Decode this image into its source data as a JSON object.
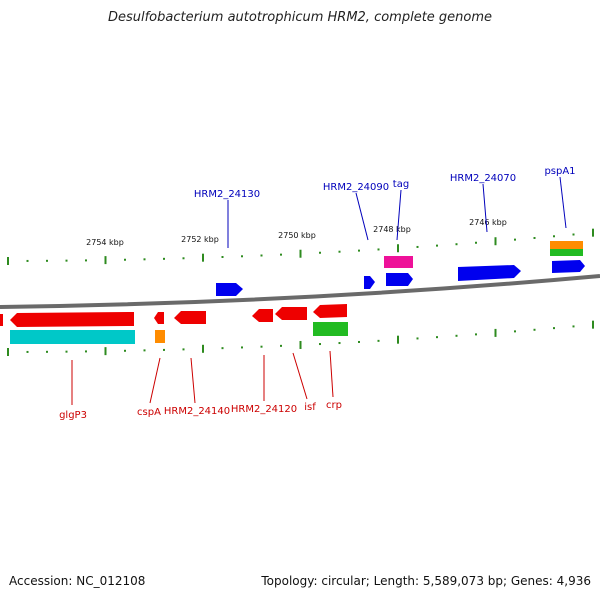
{
  "title": "Desulfobacterium autotrophicum HRM2, complete genome",
  "footer": {
    "accession": "Accession: NC_012108",
    "summary": "Topology: circular; Length: 5,589,073 bp; Genes: 4,936"
  },
  "colors": {
    "backbone": "#808080",
    "forward_label": "#0000bb",
    "reverse_label": "#cc0000",
    "tick": "#2e8b1f",
    "blue_gene": "#0000ee",
    "red_gene": "#ee0000",
    "cyan_gene": "#00c8c8",
    "orange_gene": "#ff8c00",
    "green_gene": "#22bb22",
    "magenta_gene": "#ee1199"
  },
  "scale_labels": [
    "2754 kbp",
    "2752 kbp",
    "2750 kbp",
    "2748 kbp",
    "2746 kbp"
  ],
  "forward_genes": [
    {
      "label": "HRM2_24130"
    },
    {
      "label": "HRM2_24090"
    },
    {
      "label": "tag"
    },
    {
      "label": "HRM2_24070"
    },
    {
      "label": "pspA1"
    }
  ],
  "reverse_genes": [
    {
      "label": "glgP3"
    },
    {
      "label": "cspA"
    },
    {
      "label": "HRM2_24140"
    },
    {
      "label": "HRM2_24120"
    },
    {
      "label": "isf"
    },
    {
      "label": "crp"
    }
  ]
}
